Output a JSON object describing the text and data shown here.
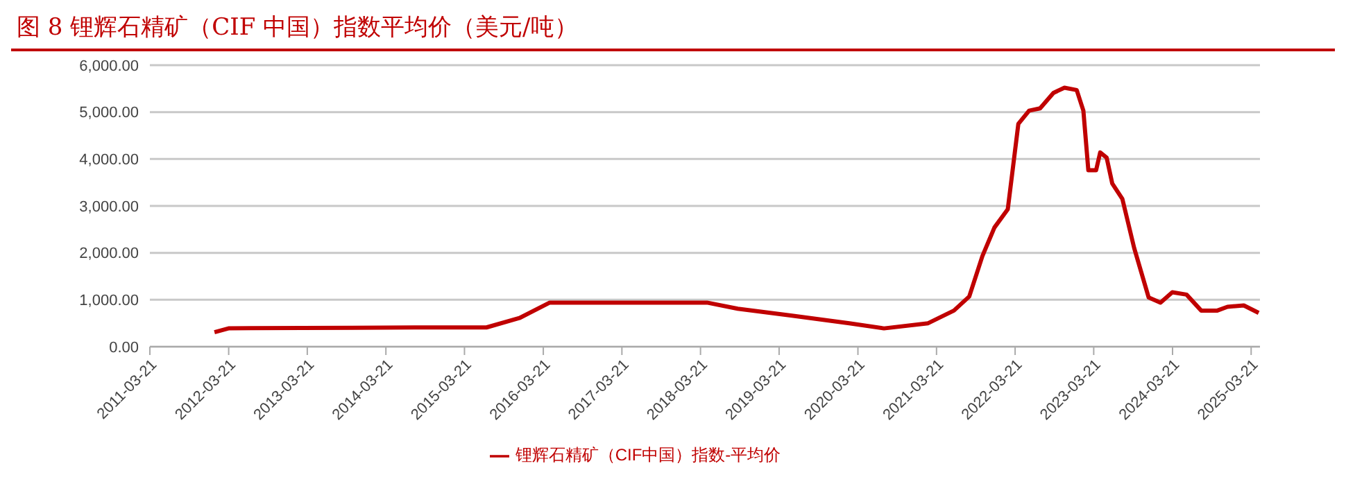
{
  "chart_data": {
    "type": "line",
    "title": "图 8 锂辉石精矿（CIF 中国）指数平均价（美元/吨）",
    "x": [
      "2012-01-15",
      "2012-03-20",
      "2012-07-01",
      "2014-08-01",
      "2015-07-01",
      "2015-12-01",
      "2016-04-20",
      "2018-04-20",
      "2018-09-10",
      "2019-05-20",
      "2020-02-10",
      "2020-07-20",
      "2021-02-10",
      "2021-06-10",
      "2021-08-20",
      "2021-10-20",
      "2021-12-15",
      "2022-02-15",
      "2022-04-05",
      "2022-05-25",
      "2022-07-15",
      "2022-09-15",
      "2022-11-05",
      "2023-01-01",
      "2023-02-01",
      "2023-02-24",
      "2023-04-01",
      "2023-04-20",
      "2023-05-20",
      "2023-06-15",
      "2023-08-01",
      "2023-09-25",
      "2023-12-01",
      "2024-01-25",
      "2024-03-20",
      "2024-05-25",
      "2024-08-01",
      "2024-10-15",
      "2024-12-01",
      "2025-02-15",
      "2025-04-25"
    ],
    "series": [
      {
        "name": "锂辉石精矿（CIF中国）指数-平均价",
        "color": "#c00000",
        "values": [
          310,
          390,
          395,
          410,
          410,
          610,
          940,
          940,
          810,
          660,
          500,
          390,
          500,
          770,
          1070,
          1930,
          2540,
          2930,
          4750,
          5030,
          5080,
          5410,
          5520,
          5470,
          5030,
          3760,
          3760,
          4140,
          4030,
          3480,
          3150,
          2100,
          1050,
          940,
          1160,
          1110,
          770,
          770,
          850,
          880,
          720
        ]
      }
    ],
    "xlim": [
      "2011-03-21",
      "2025-05-01"
    ],
    "xticks": [
      "2011-03-21",
      "2012-03-21",
      "2013-03-21",
      "2014-03-21",
      "2015-03-21",
      "2016-03-21",
      "2017-03-21",
      "2018-03-21",
      "2019-03-21",
      "2020-03-21",
      "2021-03-21",
      "2022-03-21",
      "2023-03-21",
      "2024-03-21",
      "2025-03-21"
    ],
    "ylim": [
      0,
      6000
    ],
    "yticks": [
      {
        "value": 0,
        "label": "0.00"
      },
      {
        "value": 1000,
        "label": "1,000.00"
      },
      {
        "value": 2000,
        "label": "2,000.00"
      },
      {
        "value": 3000,
        "label": "3,000.00"
      },
      {
        "value": 4000,
        "label": "4,000.00"
      },
      {
        "value": 5000,
        "label": "5,000.00"
      },
      {
        "value": 6000,
        "label": "6,000.00"
      }
    ],
    "grid": "y",
    "legend": "bottom",
    "marker": "none",
    "line_style": "solid"
  }
}
